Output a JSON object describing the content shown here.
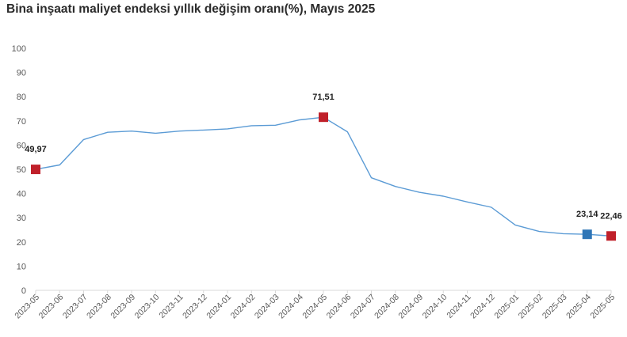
{
  "chart_data": {
    "type": "line",
    "title": "Bina inşaatı maliyet endeksi yıllık değişim oranı(%), Mayıs 2025",
    "xlabel": "",
    "ylabel": "",
    "ylim": [
      0,
      100
    ],
    "yticks": [
      0,
      10,
      20,
      30,
      40,
      50,
      60,
      70,
      80,
      90,
      100
    ],
    "grid": false,
    "categories": [
      "2023-05",
      "2023-06",
      "2023-07",
      "2023-08",
      "2023-09",
      "2023-10",
      "2023-11",
      "2023-12",
      "2024-01",
      "2024-02",
      "2024-03",
      "2024-04",
      "2024-05",
      "2024-06",
      "2024-07",
      "2024-08",
      "2024-09",
      "2024-10",
      "2024-11",
      "2024-12",
      "2025-01",
      "2025-02",
      "2025-03",
      "2025-04",
      "2025-05"
    ],
    "series": [
      {
        "values": [
          49.97,
          51.8,
          62.3,
          65.3,
          65.8,
          64.9,
          65.8,
          66.2,
          66.7,
          68.0,
          68.2,
          70.4,
          71.51,
          65.5,
          46.5,
          42.9,
          40.5,
          38.9,
          36.5,
          34.3,
          27.0,
          24.3,
          23.4,
          23.14,
          22.46
        ],
        "color": "#5b9bd5"
      }
    ],
    "markers": [
      {
        "category": "2023-05",
        "value": 49.97,
        "label": "49,97",
        "color": "#c0202a"
      },
      {
        "category": "2024-05",
        "value": 71.51,
        "label": "71,51",
        "color": "#c0202a"
      },
      {
        "category": "2025-04",
        "value": 23.14,
        "label": "23,14",
        "color": "#2e75b6"
      },
      {
        "category": "2025-05",
        "value": 22.46,
        "label": "22,46",
        "color": "#c0202a"
      }
    ]
  }
}
